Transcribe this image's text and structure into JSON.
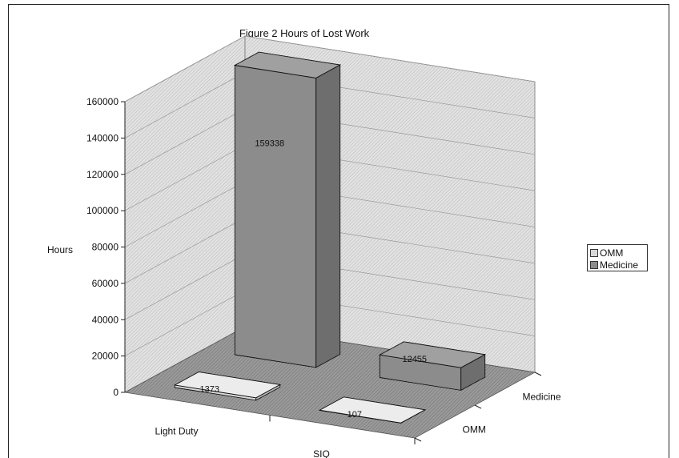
{
  "chart_data": {
    "type": "bar",
    "title": "Figure 2  Hours of Lost Work",
    "xlabel": "",
    "ylabel": "Hours",
    "categories": [
      "Light Duty",
      "SIQ"
    ],
    "series_axis_labels": [
      "Medicine",
      "OMM"
    ],
    "ylim": [
      0,
      160000
    ],
    "yticks": [
      "0",
      "20000",
      "40000",
      "60000",
      "80000",
      "100000",
      "120000",
      "140000",
      "160000"
    ],
    "series": [
      {
        "name": "OMM",
        "values": [
          1373,
          107
        ],
        "labels": [
          "1373",
          "107"
        ],
        "color": "#d8d8d8"
      },
      {
        "name": "Medicine",
        "values": [
          159338,
          12455
        ],
        "labels": [
          "159338",
          "12455"
        ],
        "color": "#8c8c8c"
      }
    ],
    "legend": "right",
    "grid": true,
    "projection": "3d"
  }
}
